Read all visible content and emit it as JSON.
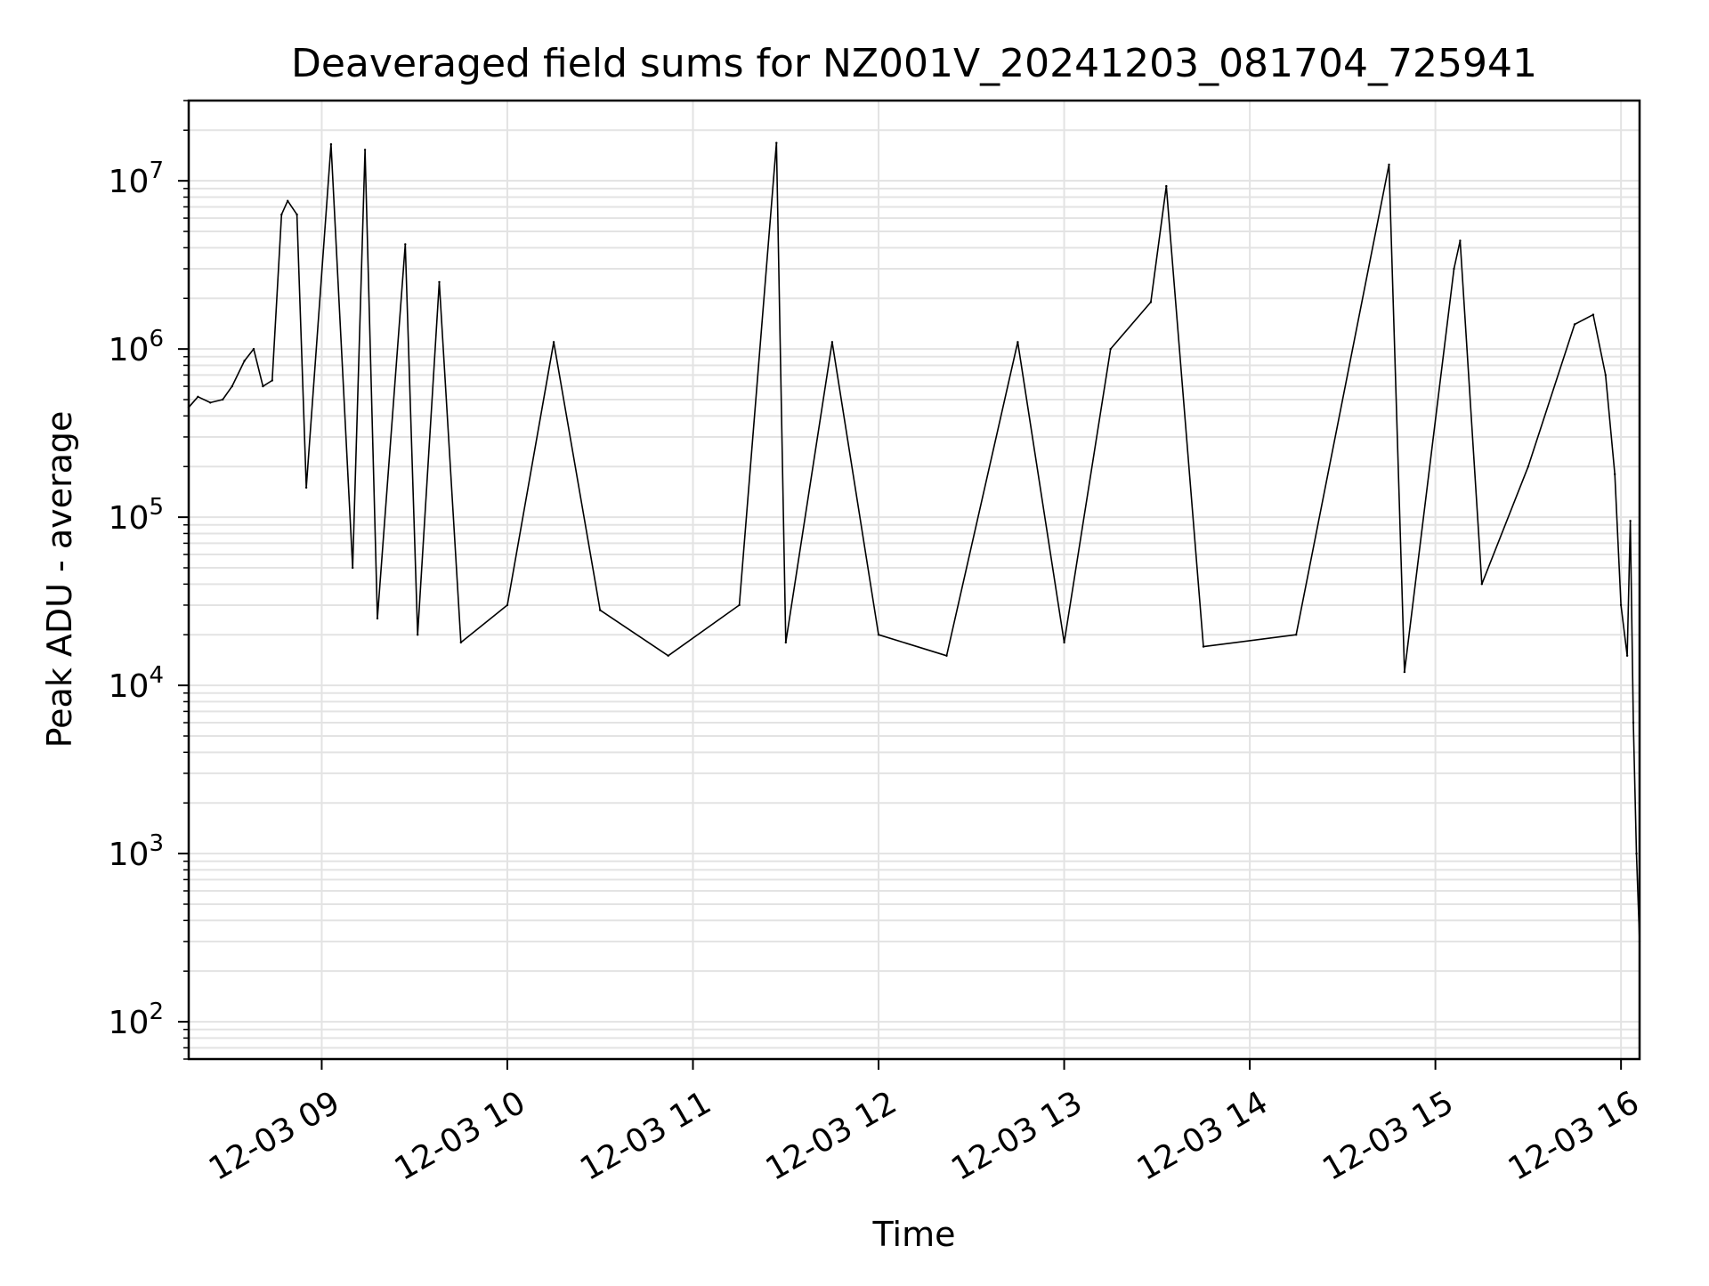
{
  "chart_data": {
    "type": "line",
    "title": "Deaveraged field sums for NZ001V_20241203_081704_725941",
    "xlabel": "Time",
    "ylabel": "Peak ADU - average",
    "yscale": "log",
    "ylim": [
      60,
      30000000
    ],
    "xlim": [
      "2024-12-03 08:17",
      "2024-12-03 16:06"
    ],
    "grid": true,
    "x_ticks": [
      {
        "value": "2024-12-03 09:00",
        "label": "12-03 09"
      },
      {
        "value": "2024-12-03 10:00",
        "label": "12-03 10"
      },
      {
        "value": "2024-12-03 11:00",
        "label": "12-03 11"
      },
      {
        "value": "2024-12-03 12:00",
        "label": "12-03 12"
      },
      {
        "value": "2024-12-03 13:00",
        "label": "12-03 13"
      },
      {
        "value": "2024-12-03 14:00",
        "label": "12-03 14"
      },
      {
        "value": "2024-12-03 15:00",
        "label": "12-03 15"
      },
      {
        "value": "2024-12-03 16:00",
        "label": "12-03 16"
      }
    ],
    "y_ticks": [
      {
        "value": 100,
        "base": "10",
        "exp": "2"
      },
      {
        "value": 1000,
        "base": "10",
        "exp": "3"
      },
      {
        "value": 10000,
        "base": "10",
        "exp": "4"
      },
      {
        "value": 100000,
        "base": "10",
        "exp": "5"
      },
      {
        "value": 1000000,
        "base": "10",
        "exp": "6"
      },
      {
        "value": 10000000,
        "base": "10",
        "exp": "7"
      }
    ],
    "colors": {
      "line": "#000000",
      "grid": "#e3e3e3",
      "axes": "#000000"
    },
    "series": [
      {
        "values": [
          [
            "2024-12-03 08:17",
            450000
          ],
          [
            "2024-12-03 08:20",
            520000
          ],
          [
            "2024-12-03 08:24",
            480000
          ],
          [
            "2024-12-03 08:28",
            500000
          ],
          [
            "2024-12-03 08:31",
            600000
          ],
          [
            "2024-12-03 08:35",
            850000
          ],
          [
            "2024-12-03 08:38",
            1000000
          ],
          [
            "2024-12-03 08:41",
            600000
          ],
          [
            "2024-12-03 08:44",
            650000
          ],
          [
            "2024-12-03 08:47",
            6300000
          ],
          [
            "2024-12-03 08:49",
            7600000
          ],
          [
            "2024-12-03 08:52",
            6300000
          ],
          [
            "2024-12-03 08:55",
            150000
          ],
          [
            "2024-12-03 09:03",
            16500000
          ],
          [
            "2024-12-03 09:10",
            50000
          ],
          [
            "2024-12-03 09:14",
            15300000
          ],
          [
            "2024-12-03 09:18",
            25000
          ],
          [
            "2024-12-03 09:27",
            4200000
          ],
          [
            "2024-12-03 09:31",
            20000
          ],
          [
            "2024-12-03 09:38",
            2500000
          ],
          [
            "2024-12-03 09:45",
            18000
          ],
          [
            "2024-12-03 10:00",
            30000
          ],
          [
            "2024-12-03 10:15",
            1100000
          ],
          [
            "2024-12-03 10:30",
            28000
          ],
          [
            "2024-12-03 10:52",
            15000
          ],
          [
            "2024-12-03 11:15",
            30000
          ],
          [
            "2024-12-03 11:27",
            16800000
          ],
          [
            "2024-12-03 11:30",
            18000
          ],
          [
            "2024-12-03 11:45",
            1100000
          ],
          [
            "2024-12-03 12:00",
            20000
          ],
          [
            "2024-12-03 12:22",
            15000
          ],
          [
            "2024-12-03 12:45",
            1100000
          ],
          [
            "2024-12-03 13:00",
            18000
          ],
          [
            "2024-12-03 13:15",
            1000000
          ],
          [
            "2024-12-03 13:28",
            1900000
          ],
          [
            "2024-12-03 13:33",
            9300000
          ],
          [
            "2024-12-03 13:45",
            17000
          ],
          [
            "2024-12-03 14:15",
            20000
          ],
          [
            "2024-12-03 14:45",
            12500000
          ],
          [
            "2024-12-03 14:50",
            12000
          ],
          [
            "2024-12-03 15:06",
            3000000
          ],
          [
            "2024-12-03 15:08",
            4400000
          ],
          [
            "2024-12-03 15:15",
            40000
          ],
          [
            "2024-12-03 15:30",
            200000
          ],
          [
            "2024-12-03 15:45",
            1400000
          ],
          [
            "2024-12-03 15:51",
            1600000
          ],
          [
            "2024-12-03 15:55",
            700000
          ],
          [
            "2024-12-03 15:58",
            180000
          ],
          [
            "2024-12-03 16:00",
            30000
          ],
          [
            "2024-12-03 16:02",
            15000
          ],
          [
            "2024-12-03 16:03",
            95000
          ],
          [
            "2024-12-03 16:04",
            6000
          ],
          [
            "2024-12-03 16:05",
            1000
          ],
          [
            "2024-12-03 16:06",
            300
          ]
        ]
      }
    ]
  }
}
